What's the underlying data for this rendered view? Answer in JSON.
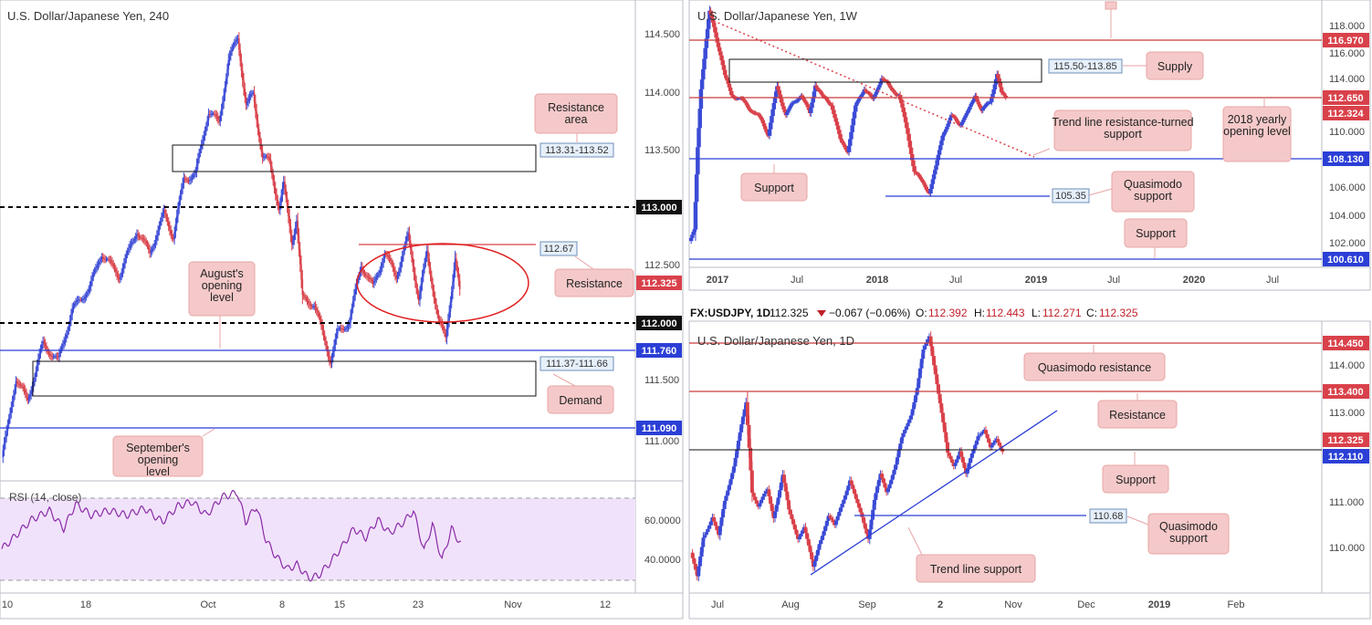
{
  "colors": {
    "up": "#3b4bd6",
    "down": "#d9414a",
    "red_level": "#c93c3c",
    "blue_level": "#2b3fd6",
    "callout_bg": "#f5c9c9",
    "callout_border": "#e8a5a5",
    "info_bg": "#e6f0fb",
    "rsi_fill": "#f1e2fb",
    "rsi_line": "#8a2aa8"
  },
  "panels": {
    "h4": {
      "title": "U.S. Dollar/Japanese Yen, 240",
      "price_ticks": [
        "114.500",
        "114.000",
        "113.500",
        "112.500",
        "111.500",
        "111.000"
      ],
      "time_ticks": [
        "10",
        "18",
        "Oct",
        "8",
        "15",
        "23",
        "Nov",
        "12"
      ],
      "level_labels": {
        "l113": "113.000",
        "l11267": "112.67",
        "l112325": "112.325",
        "l112": "112.000",
        "l11176": "111.760",
        "l11109": "111.090"
      },
      "zones": {
        "resistance": "113.31-113.52",
        "demand": "111.37-111.66"
      },
      "callouts": {
        "resistance_area": "Resistance area",
        "augusts_opening": "August's opening level",
        "resistance": "Resistance",
        "demand": "Demand",
        "septembers_opening": "September's opening level"
      },
      "rsi": {
        "label": "RSI (14, close)",
        "ticks": [
          "60.0000",
          "40.0000"
        ]
      }
    },
    "weekly": {
      "title": "U.S. Dollar/Japanese Yen, 1W",
      "price_ticks": [
        "118.000",
        "116.000",
        "114.000",
        "110.000",
        "106.000",
        "104.000",
        "102.000"
      ],
      "time_ticks": [
        "2017",
        "Jul",
        "2018",
        "Jul",
        "2019",
        "Jul",
        "2020",
        "Jul"
      ],
      "level_labels": {
        "l11697": "116.970",
        "l11265": "112.650",
        "l112324": "112.324",
        "l10813": "108.130",
        "l10061": "100.610"
      },
      "zones": {
        "supply": "115.50-113.85",
        "quasimodo": "105.35"
      },
      "callouts": {
        "supply": "Supply",
        "trendline_res": "Trend line resistance-turned support",
        "yearly_2018": "2018 yearly opening level",
        "support_left": "Support",
        "quasimodo_support": "Quasimodo support",
        "support_bottom": "Support"
      }
    },
    "daily": {
      "legend": {
        "symbol": "FX:USDJPY, 1D",
        "price": "112.325",
        "change": "−0.067 (−0.06%)",
        "o_label": "O:",
        "o": "112.392",
        "h_label": "H:",
        "h": "112.443",
        "l_label": "L:",
        "l": "112.271",
        "c_label": "C:",
        "c": "112.325"
      },
      "title": "U.S. Dollar/Japanese Yen, 1D",
      "price_ticks": [
        "114.000",
        "113.000",
        "111.000",
        "110.000"
      ],
      "time_ticks": [
        "Jul",
        "Aug",
        "Sep",
        "2",
        "Nov",
        "Dec",
        "2019",
        "Feb"
      ],
      "level_labels": {
        "l11445": "114.450",
        "l1134": "113.400",
        "l112325": "112.325",
        "l11211": "112.110"
      },
      "zones": {
        "quasimodo": "110.68"
      },
      "callouts": {
        "quasimodo_res": "Quasimodo resistance",
        "resistance": "Resistance",
        "support": "Support",
        "quasimodo_support": "Quasimodo support",
        "trend_support": "Trend line support"
      }
    }
  },
  "chart_data": [
    {
      "type": "candlestick",
      "title": "U.S. Dollar/Japanese Yen, 240",
      "ylim": [
        110.75,
        114.85
      ],
      "levels": [
        113.0,
        112.67,
        112.325,
        112.0,
        111.76,
        111.09
      ],
      "zones": [
        [
          113.31,
          113.52
        ],
        [
          111.37,
          111.66
        ]
      ],
      "path": [
        [
          0,
          110.9
        ],
        [
          4,
          111.1
        ],
        [
          12,
          111.6
        ],
        [
          22,
          111.4
        ],
        [
          35,
          111.9
        ],
        [
          48,
          111.75
        ],
        [
          60,
          112.2
        ],
        [
          75,
          112.4
        ],
        [
          85,
          112.7
        ],
        [
          100,
          112.5
        ],
        [
          115,
          112.9
        ],
        [
          126,
          112.7
        ],
        [
          138,
          113.05
        ],
        [
          146,
          112.85
        ],
        [
          155,
          113.35
        ],
        [
          165,
          113.4
        ],
        [
          176,
          113.95
        ],
        [
          185,
          113.85
        ],
        [
          193,
          114.4
        ],
        [
          201,
          114.6
        ],
        [
          208,
          114.0
        ],
        [
          214,
          114.1
        ],
        [
          222,
          113.55
        ],
        [
          228,
          113.5
        ],
        [
          236,
          113.1
        ],
        [
          240,
          113.3
        ],
        [
          247,
          112.8
        ],
        [
          251,
          113.0
        ],
        [
          256,
          112.3
        ],
        [
          266,
          112.25
        ],
        [
          276,
          111.9
        ],
        [
          280,
          111.75
        ],
        [
          286,
          112.0
        ],
        [
          296,
          112.1
        ],
        [
          306,
          112.6
        ],
        [
          316,
          112.4
        ],
        [
          326,
          112.7
        ],
        [
          336,
          112.5
        ],
        [
          346,
          112.85
        ],
        [
          355,
          112.3
        ],
        [
          362,
          112.7
        ],
        [
          372,
          112.1
        ],
        [
          378,
          111.95
        ],
        [
          386,
          112.65
        ],
        [
          390,
          112.35
        ]
      ],
      "rsi": {
        "ylim": [
          25,
          70
        ],
        "path": [
          [
            0,
            43
          ],
          [
            10,
            48
          ],
          [
            25,
            56
          ],
          [
            40,
            60
          ],
          [
            52,
            52
          ],
          [
            62,
            63
          ],
          [
            75,
            58
          ],
          [
            90,
            60
          ],
          [
            105,
            58
          ],
          [
            120,
            61
          ],
          [
            135,
            55
          ],
          [
            148,
            62
          ],
          [
            160,
            64
          ],
          [
            172,
            58
          ],
          [
            185,
            66
          ],
          [
            198,
            68
          ],
          [
            205,
            55
          ],
          [
            214,
            62
          ],
          [
            222,
            47
          ],
          [
            230,
            40
          ],
          [
            240,
            34
          ],
          [
            248,
            36
          ],
          [
            258,
            30
          ],
          [
            266,
            31
          ],
          [
            276,
            37
          ],
          [
            286,
            44
          ],
          [
            296,
            52
          ],
          [
            306,
            48
          ],
          [
            316,
            56
          ],
          [
            326,
            50
          ],
          [
            338,
            55
          ],
          [
            346,
            60
          ],
          [
            355,
            42
          ],
          [
            362,
            54
          ],
          [
            370,
            38
          ],
          [
            378,
            52
          ],
          [
            386,
            45
          ]
        ]
      }
    },
    {
      "type": "candlestick",
      "title": "U.S. Dollar/Japanese Yen, 1W",
      "ylim": [
        99.6,
        119.0
      ],
      "levels": [
        116.97,
        112.65,
        112.324,
        108.13,
        100.61
      ],
      "zones": [
        [
          113.85,
          115.5
        ]
      ],
      "quasimodo_support": 105.35,
      "path": [
        [
          0,
          101.5
        ],
        [
          4,
          102.2
        ],
        [
          7,
          108.5
        ],
        [
          10,
          113.0
        ],
        [
          14,
          116.0
        ],
        [
          18,
          118.6
        ],
        [
          22,
          117.5
        ],
        [
          28,
          115.5
        ],
        [
          32,
          113.8
        ],
        [
          38,
          112.5
        ],
        [
          48,
          112.0
        ],
        [
          58,
          111.2
        ],
        [
          66,
          110.5
        ],
        [
          72,
          109.5
        ],
        [
          80,
          113.0
        ],
        [
          88,
          111.0
        ],
        [
          95,
          111.8
        ],
        [
          102,
          112.5
        ],
        [
          110,
          111.0
        ],
        [
          115,
          113.3
        ],
        [
          122,
          112.2
        ],
        [
          130,
          111.8
        ],
        [
          138,
          109.0
        ],
        [
          145,
          108.3
        ],
        [
          152,
          111.5
        ],
        [
          160,
          113.0
        ],
        [
          168,
          112.0
        ],
        [
          176,
          113.8
        ],
        [
          184,
          112.9
        ],
        [
          192,
          112.5
        ],
        [
          200,
          109.5
        ],
        [
          206,
          106.8
        ],
        [
          212,
          106.0
        ],
        [
          220,
          105.2
        ],
        [
          226,
          107.0
        ],
        [
          232,
          109.5
        ],
        [
          240,
          110.8
        ],
        [
          248,
          110.3
        ],
        [
          256,
          111.2
        ],
        [
          262,
          112.5
        ],
        [
          268,
          111.2
        ],
        [
          276,
          112.0
        ],
        [
          282,
          114.0
        ],
        [
          286,
          112.5
        ],
        [
          290,
          112.3
        ]
      ]
    },
    {
      "type": "candlestick",
      "title": "U.S. Dollar/Japanese Yen, 1D",
      "ylim": [
        109.55,
        114.65
      ],
      "levels": [
        114.45,
        113.4,
        112.325,
        112.11
      ],
      "quasimodo_support": 110.68,
      "trend_support": [
        [
          110.8,
          113.0
        ]
      ],
      "path": [
        [
          0,
          110.3
        ],
        [
          4,
          109.8
        ],
        [
          8,
          110.6
        ],
        [
          14,
          111.0
        ],
        [
          18,
          110.6
        ],
        [
          22,
          111.3
        ],
        [
          28,
          112.0
        ],
        [
          32,
          112.6
        ],
        [
          36,
          113.2
        ],
        [
          40,
          111.5
        ],
        [
          44,
          111.2
        ],
        [
          50,
          111.5
        ],
        [
          54,
          111.0
        ],
        [
          60,
          111.8
        ],
        [
          64,
          111.1
        ],
        [
          70,
          110.6
        ],
        [
          74,
          110.8
        ],
        [
          80,
          110.0
        ],
        [
          84,
          110.5
        ],
        [
          90,
          111.0
        ],
        [
          94,
          110.8
        ],
        [
          98,
          111.2
        ],
        [
          104,
          111.7
        ],
        [
          108,
          111.3
        ],
        [
          112,
          111.0
        ],
        [
          116,
          110.6
        ],
        [
          120,
          111.3
        ],
        [
          124,
          111.8
        ],
        [
          128,
          111.5
        ],
        [
          134,
          112.0
        ],
        [
          138,
          112.5
        ],
        [
          144,
          113.0
        ],
        [
          148,
          113.5
        ],
        [
          152,
          114.2
        ],
        [
          156,
          114.5
        ],
        [
          160,
          113.8
        ],
        [
          164,
          113.0
        ],
        [
          168,
          112.2
        ],
        [
          172,
          112.0
        ],
        [
          176,
          112.3
        ],
        [
          180,
          111.8
        ],
        [
          184,
          112.2
        ],
        [
          188,
          112.6
        ],
        [
          192,
          112.7
        ],
        [
          196,
          112.3
        ],
        [
          200,
          112.5
        ],
        [
          204,
          112.3
        ]
      ]
    }
  ]
}
